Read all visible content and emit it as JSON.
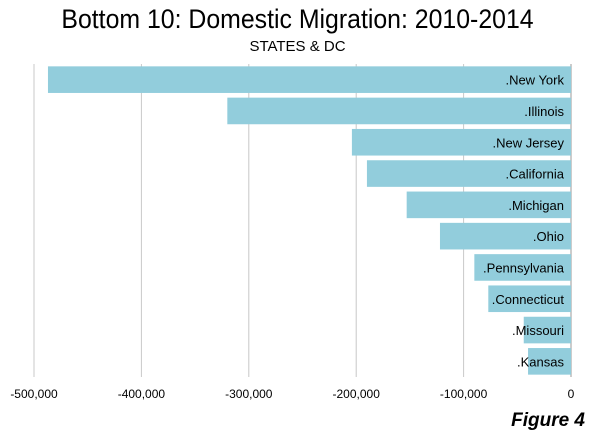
{
  "chart_data": {
    "type": "bar",
    "orientation": "horizontal",
    "title": "Bottom 10: Domestic Migration: 2010-2014",
    "subtitle": "STATES & DC",
    "categories": [
      ".New York",
      ".Illinois",
      ".New Jersey",
      ".California",
      ".Michigan",
      ".Ohio",
      ".Pennsylvania",
      ".Connecticut",
      ".Missouri",
      ".Kansas"
    ],
    "values": [
      -487000,
      -320000,
      -204000,
      -190000,
      -153000,
      -122000,
      -90000,
      -77000,
      -44000,
      -40000
    ],
    "xlim": [
      -500000,
      0
    ],
    "xticks": [
      -500000,
      -400000,
      -300000,
      -200000,
      -100000,
      0
    ],
    "xtick_labels": [
      "-500,000",
      "-400,000",
      "-300,000",
      "-200,000",
      "-100,000",
      "0"
    ],
    "grid": "vertical",
    "legend": "none",
    "bar_color": "#92cddc",
    "grid_color": "#c8c8c8"
  },
  "figure_label": "Figure 4"
}
